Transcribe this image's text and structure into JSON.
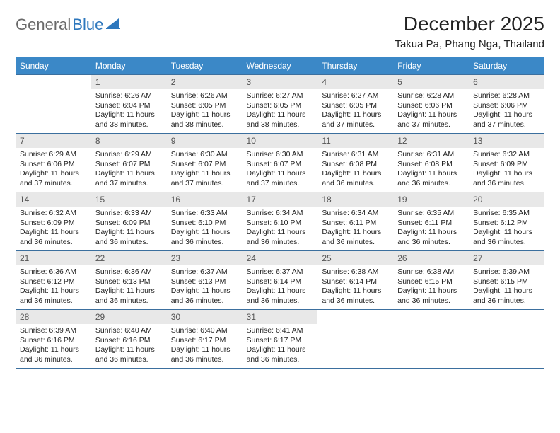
{
  "logo": {
    "general": "General",
    "blue": "Blue"
  },
  "header": {
    "month_title": "December 2025",
    "location": "Takua Pa, Phang Nga, Thailand"
  },
  "colors": {
    "header_bg": "#3b88c7",
    "row_divider": "#3b6f9e",
    "daynum_bg": "#e8e8e8",
    "logo_blue": "#2d77bd",
    "logo_gray": "#6a6a6a"
  },
  "weekdays": [
    "Sunday",
    "Monday",
    "Tuesday",
    "Wednesday",
    "Thursday",
    "Friday",
    "Saturday"
  ],
  "weeks": [
    [
      {
        "n": "",
        "sr": "",
        "ss": "",
        "dl": ""
      },
      {
        "n": "1",
        "sr": "Sunrise: 6:26 AM",
        "ss": "Sunset: 6:04 PM",
        "dl": "Daylight: 11 hours and 38 minutes."
      },
      {
        "n": "2",
        "sr": "Sunrise: 6:26 AM",
        "ss": "Sunset: 6:05 PM",
        "dl": "Daylight: 11 hours and 38 minutes."
      },
      {
        "n": "3",
        "sr": "Sunrise: 6:27 AM",
        "ss": "Sunset: 6:05 PM",
        "dl": "Daylight: 11 hours and 38 minutes."
      },
      {
        "n": "4",
        "sr": "Sunrise: 6:27 AM",
        "ss": "Sunset: 6:05 PM",
        "dl": "Daylight: 11 hours and 37 minutes."
      },
      {
        "n": "5",
        "sr": "Sunrise: 6:28 AM",
        "ss": "Sunset: 6:06 PM",
        "dl": "Daylight: 11 hours and 37 minutes."
      },
      {
        "n": "6",
        "sr": "Sunrise: 6:28 AM",
        "ss": "Sunset: 6:06 PM",
        "dl": "Daylight: 11 hours and 37 minutes."
      }
    ],
    [
      {
        "n": "7",
        "sr": "Sunrise: 6:29 AM",
        "ss": "Sunset: 6:06 PM",
        "dl": "Daylight: 11 hours and 37 minutes."
      },
      {
        "n": "8",
        "sr": "Sunrise: 6:29 AM",
        "ss": "Sunset: 6:07 PM",
        "dl": "Daylight: 11 hours and 37 minutes."
      },
      {
        "n": "9",
        "sr": "Sunrise: 6:30 AM",
        "ss": "Sunset: 6:07 PM",
        "dl": "Daylight: 11 hours and 37 minutes."
      },
      {
        "n": "10",
        "sr": "Sunrise: 6:30 AM",
        "ss": "Sunset: 6:07 PM",
        "dl": "Daylight: 11 hours and 37 minutes."
      },
      {
        "n": "11",
        "sr": "Sunrise: 6:31 AM",
        "ss": "Sunset: 6:08 PM",
        "dl": "Daylight: 11 hours and 36 minutes."
      },
      {
        "n": "12",
        "sr": "Sunrise: 6:31 AM",
        "ss": "Sunset: 6:08 PM",
        "dl": "Daylight: 11 hours and 36 minutes."
      },
      {
        "n": "13",
        "sr": "Sunrise: 6:32 AM",
        "ss": "Sunset: 6:09 PM",
        "dl": "Daylight: 11 hours and 36 minutes."
      }
    ],
    [
      {
        "n": "14",
        "sr": "Sunrise: 6:32 AM",
        "ss": "Sunset: 6:09 PM",
        "dl": "Daylight: 11 hours and 36 minutes."
      },
      {
        "n": "15",
        "sr": "Sunrise: 6:33 AM",
        "ss": "Sunset: 6:09 PM",
        "dl": "Daylight: 11 hours and 36 minutes."
      },
      {
        "n": "16",
        "sr": "Sunrise: 6:33 AM",
        "ss": "Sunset: 6:10 PM",
        "dl": "Daylight: 11 hours and 36 minutes."
      },
      {
        "n": "17",
        "sr": "Sunrise: 6:34 AM",
        "ss": "Sunset: 6:10 PM",
        "dl": "Daylight: 11 hours and 36 minutes."
      },
      {
        "n": "18",
        "sr": "Sunrise: 6:34 AM",
        "ss": "Sunset: 6:11 PM",
        "dl": "Daylight: 11 hours and 36 minutes."
      },
      {
        "n": "19",
        "sr": "Sunrise: 6:35 AM",
        "ss": "Sunset: 6:11 PM",
        "dl": "Daylight: 11 hours and 36 minutes."
      },
      {
        "n": "20",
        "sr": "Sunrise: 6:35 AM",
        "ss": "Sunset: 6:12 PM",
        "dl": "Daylight: 11 hours and 36 minutes."
      }
    ],
    [
      {
        "n": "21",
        "sr": "Sunrise: 6:36 AM",
        "ss": "Sunset: 6:12 PM",
        "dl": "Daylight: 11 hours and 36 minutes."
      },
      {
        "n": "22",
        "sr": "Sunrise: 6:36 AM",
        "ss": "Sunset: 6:13 PM",
        "dl": "Daylight: 11 hours and 36 minutes."
      },
      {
        "n": "23",
        "sr": "Sunrise: 6:37 AM",
        "ss": "Sunset: 6:13 PM",
        "dl": "Daylight: 11 hours and 36 minutes."
      },
      {
        "n": "24",
        "sr": "Sunrise: 6:37 AM",
        "ss": "Sunset: 6:14 PM",
        "dl": "Daylight: 11 hours and 36 minutes."
      },
      {
        "n": "25",
        "sr": "Sunrise: 6:38 AM",
        "ss": "Sunset: 6:14 PM",
        "dl": "Daylight: 11 hours and 36 minutes."
      },
      {
        "n": "26",
        "sr": "Sunrise: 6:38 AM",
        "ss": "Sunset: 6:15 PM",
        "dl": "Daylight: 11 hours and 36 minutes."
      },
      {
        "n": "27",
        "sr": "Sunrise: 6:39 AM",
        "ss": "Sunset: 6:15 PM",
        "dl": "Daylight: 11 hours and 36 minutes."
      }
    ],
    [
      {
        "n": "28",
        "sr": "Sunrise: 6:39 AM",
        "ss": "Sunset: 6:16 PM",
        "dl": "Daylight: 11 hours and 36 minutes."
      },
      {
        "n": "29",
        "sr": "Sunrise: 6:40 AM",
        "ss": "Sunset: 6:16 PM",
        "dl": "Daylight: 11 hours and 36 minutes."
      },
      {
        "n": "30",
        "sr": "Sunrise: 6:40 AM",
        "ss": "Sunset: 6:17 PM",
        "dl": "Daylight: 11 hours and 36 minutes."
      },
      {
        "n": "31",
        "sr": "Sunrise: 6:41 AM",
        "ss": "Sunset: 6:17 PM",
        "dl": "Daylight: 11 hours and 36 minutes."
      },
      {
        "n": "",
        "sr": "",
        "ss": "",
        "dl": ""
      },
      {
        "n": "",
        "sr": "",
        "ss": "",
        "dl": ""
      },
      {
        "n": "",
        "sr": "",
        "ss": "",
        "dl": ""
      }
    ]
  ]
}
